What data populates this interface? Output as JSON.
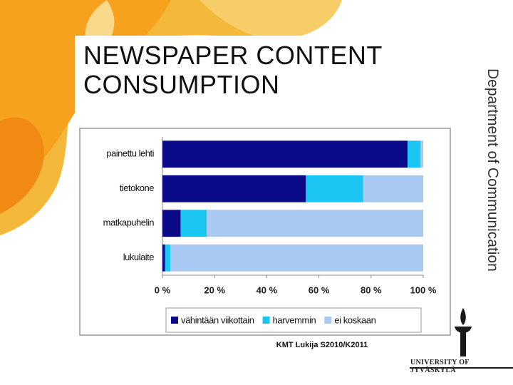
{
  "slide": {
    "title": "NEWSPAPER CONTENT CONSUMPTION",
    "side_text": "Department of Communication",
    "logo_text": "UNIVERSITY OF JYVÄSKYLÄ"
  },
  "chart_data": {
    "type": "bar",
    "orientation": "horizontal",
    "stacked": true,
    "categories": [
      "painettu lehti",
      "tietokone",
      "matkapuhelin",
      "lukulaite"
    ],
    "series": [
      {
        "name": "vähintään viikottain",
        "color": "#0b0b8a",
        "values": [
          94,
          55,
          7,
          1
        ]
      },
      {
        "name": "harvemmin",
        "color": "#1cc6f2",
        "values": [
          5,
          22,
          10,
          2
        ]
      },
      {
        "name": "ei koskaan",
        "color": "#a9c8f2",
        "values": [
          1,
          23,
          83,
          97
        ]
      }
    ],
    "xlim": [
      0,
      100
    ],
    "xticks": [
      {
        "value": 0,
        "label": "0 %"
      },
      {
        "value": 20,
        "label": "20 %"
      },
      {
        "value": 40,
        "label": "40 %"
      },
      {
        "value": 60,
        "label": "60 %"
      },
      {
        "value": 80,
        "label": "80 %"
      },
      {
        "value": 100,
        "label": "100 %"
      }
    ],
    "legend": "bottom",
    "source": "KMT Lukija S2010/K2011"
  }
}
